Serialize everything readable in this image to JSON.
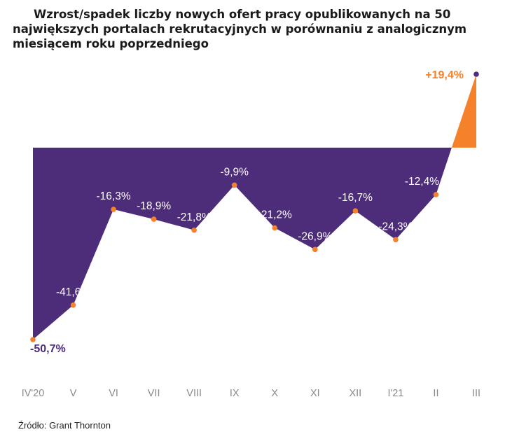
{
  "chart_data": {
    "type": "area",
    "title": "Wzrost/spadek liczby nowych ofert pracy opublikowanych na 50 największych portalach rekrutacyjnych w porównaniu z analogicznym miesiącem roku poprzedniego",
    "categories": [
      "IV'20",
      "V",
      "VI",
      "VII",
      "VIII",
      "IX",
      "X",
      "XI",
      "XII",
      "I'21",
      "II",
      "III"
    ],
    "values": [
      -50.7,
      -41.6,
      -16.3,
      -18.9,
      -21.8,
      -9.9,
      -21.2,
      -26.9,
      -16.7,
      -24.3,
      -12.4,
      19.4
    ],
    "labels": [
      "-50,7%",
      "-41,6%",
      "-16,3%",
      "-18,9%",
      "-21,8%",
      "-9,9%",
      "-21,2%",
      "-26,9%",
      "-16,7%",
      "-24,3%",
      "-12,4%",
      "+19,4%"
    ],
    "xlabel": "",
    "ylabel": "",
    "ylim": [
      -50.7,
      19.4
    ],
    "grid": false,
    "legend": "none"
  },
  "colors": {
    "negative_fill": "#4d2d7a",
    "positive_fill": "#f5822a",
    "marker": "#f5822a",
    "last_marker": "#4d2d7a",
    "first_label": "#4d2d7a",
    "last_label": "#f5822a",
    "tick": "#8a8a8a"
  },
  "source": "Źródło: Grant Thornton"
}
